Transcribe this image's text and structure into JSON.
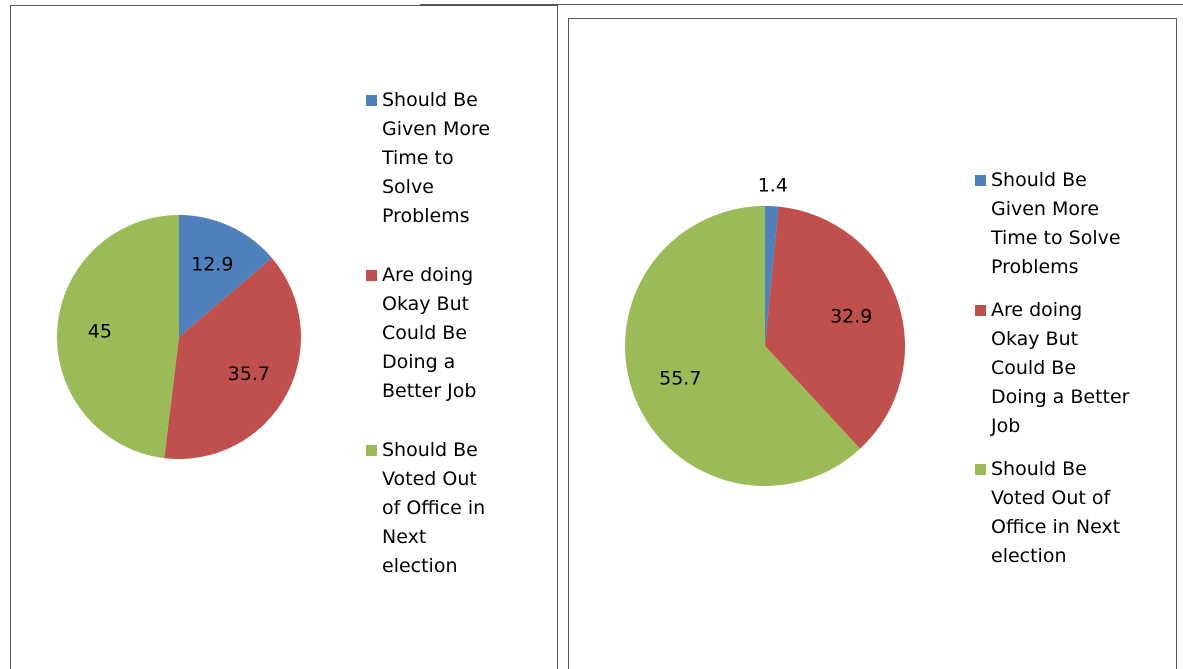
{
  "chart_data": [
    {
      "type": "pie",
      "categories": [
        "Should Be Given More Time to Solve Problems",
        "Are doing Okay But Could Be Doing a Better Job",
        "Should Be Voted Out of Office in Next election"
      ],
      "values": [
        12.9,
        35.7,
        45
      ],
      "colors": [
        "#4f81bd",
        "#c0504d",
        "#9bbb59"
      ],
      "legend": "right"
    },
    {
      "type": "pie",
      "categories": [
        "Should Be Given More Time to Solve Problems",
        "Are doing Okay But Could Be Doing a Better Job",
        "Should Be Voted Out of Office in Next election"
      ],
      "values": [
        1.4,
        32.9,
        55.7
      ],
      "colors": [
        "#4f81bd",
        "#c0504d",
        "#9bbb59"
      ],
      "legend": "right"
    }
  ]
}
